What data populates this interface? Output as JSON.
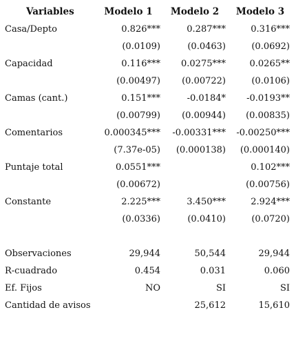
{
  "header": {
    "variables": "Variables",
    "model1": "Modelo 1",
    "model2": "Modelo 2",
    "model3": "Modelo 3"
  },
  "rows": [
    {
      "label": "Casa/Depto",
      "m1": "0.826***",
      "m2": "0.287***",
      "m3": "0.316***"
    },
    {
      "label": "",
      "m1": "(0.0109)",
      "m2": "(0.0463)",
      "m3": "(0.0692)"
    },
    {
      "label": "Capacidad",
      "m1": "0.116***",
      "m2": "0.0275***",
      "m3": "0.0265**"
    },
    {
      "label": "",
      "m1": "(0.00497)",
      "m2": "(0.00722)",
      "m3": "(0.0106)"
    },
    {
      "label": "Camas (cant.)",
      "m1": "0.151***",
      "m2": "-0.0184*",
      "m3": "-0.0193**"
    },
    {
      "label": "",
      "m1": "(0.00799)",
      "m2": "(0.00944)",
      "m3": "(0.00835)"
    },
    {
      "label": "Comentarios",
      "m1": "0.000345***",
      "m2": "-0.00331***",
      "m3": "-0.00250***"
    },
    {
      "label": "",
      "m1": "(7.37e-05)",
      "m2": "(0.000138)",
      "m3": "(0.000140)"
    },
    {
      "label": "Puntaje total",
      "m1": "0.0551***",
      "m2": "",
      "m3": "0.102***"
    },
    {
      "label": "",
      "m1": "(0.00672)",
      "m2": "",
      "m3": "(0.00756)"
    },
    {
      "label": "Constante",
      "m1": "2.225***",
      "m2": "3.450***",
      "m3": "2.924***"
    },
    {
      "label": "",
      "m1": "(0.0336)",
      "m2": "(0.0410)",
      "m3": "(0.0720)"
    },
    {
      "label": "",
      "m1": "",
      "m2": "",
      "m3": ""
    },
    {
      "label": "Observaciones",
      "m1": "29,944",
      "m2": "50,544",
      "m3": "29,944"
    },
    {
      "label": "R-cuadrado",
      "m1": "0.454",
      "m2": "0.031",
      "m3": "0.060"
    },
    {
      "label": "Ef. Fijos",
      "m1": "NO",
      "m2": "SI",
      "m3": "SI"
    },
    {
      "label": "Cantidad de avisos",
      "m1": "",
      "m2": "25,612",
      "m3": "15,610"
    }
  ]
}
